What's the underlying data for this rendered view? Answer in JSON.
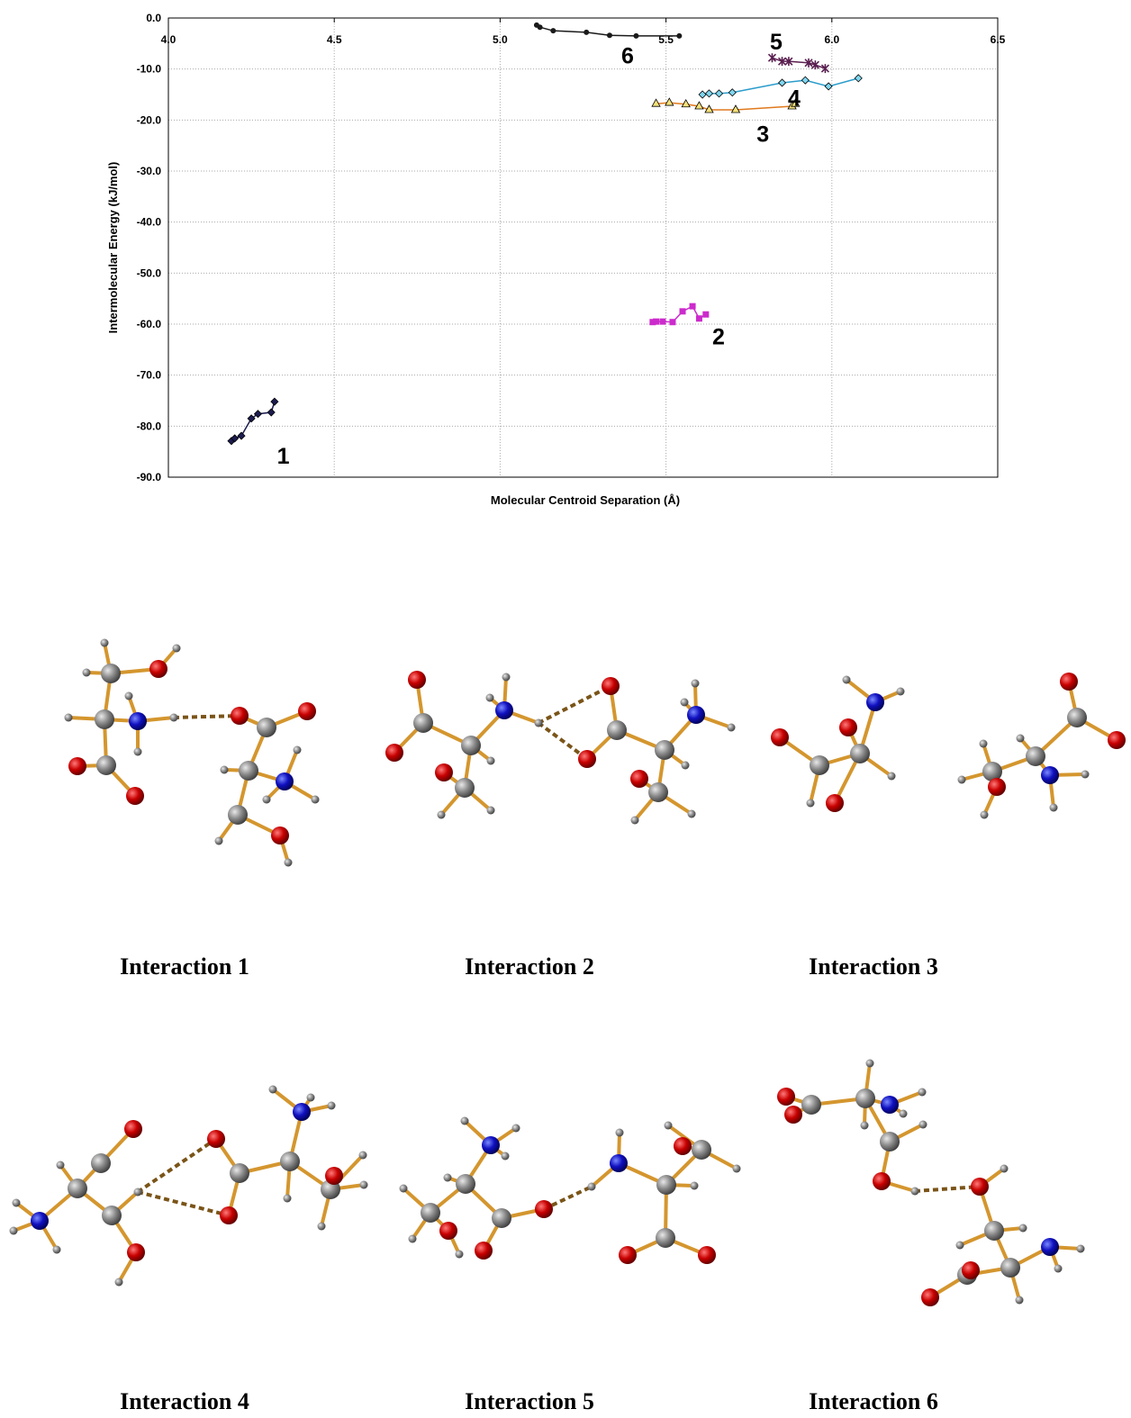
{
  "chart_data": {
    "type": "scatter",
    "x_label": "Molecular Centroid Separation (Å)",
    "y_label": "Intermolecular Energy (kJ/mol)",
    "xlim": [
      4.0,
      6.5
    ],
    "xticks": [
      {
        "value": 4,
        "label": "4.0"
      },
      4.5,
      {
        "value": 5,
        "label": "5.0"
      },
      5.5,
      {
        "value": 6,
        "label": "6.0"
      },
      6.5
    ],
    "ylim": [
      -90,
      0
    ],
    "yticks": [
      {
        "value": 0,
        "label": "0.0"
      },
      {
        "value": -10,
        "label": "-10.0"
      },
      {
        "value": -20,
        "label": "-20.0"
      },
      {
        "value": -30,
        "label": "-30.0"
      },
      {
        "value": -40,
        "label": "-40.0"
      },
      {
        "value": -50,
        "label": "-50.0"
      },
      {
        "value": -60,
        "label": "-60.0"
      },
      {
        "value": -70,
        "label": "-70.0"
      },
      {
        "value": -80,
        "label": "-80.0"
      },
      {
        "value": -90,
        "label": "-90.0"
      }
    ],
    "grid": true,
    "series": [
      {
        "name": "1",
        "color": "#1c1c50",
        "marker": "diamond",
        "x": [
          4.19,
          4.2,
          4.22,
          4.25,
          4.27,
          4.31,
          4.32
        ],
        "values": [
          -82.9,
          -82.4,
          -81.9,
          -78.5,
          -77.6,
          -77.3,
          -75.2
        ]
      },
      {
        "name": "2",
        "color": "#cc2bcc",
        "marker": "square",
        "x": [
          5.46,
          5.47,
          5.49,
          5.52,
          5.55,
          5.58,
          5.6,
          5.62
        ],
        "values": [
          -59.6,
          -59.5,
          -59.5,
          -59.6,
          -57.5,
          -56.5,
          -58.9,
          -58.1
        ]
      },
      {
        "name": "3",
        "color": "#e07a1e",
        "marker": "triangle",
        "x": [
          5.47,
          5.51,
          5.56,
          5.6,
          5.63,
          5.71,
          5.88,
          5.89
        ],
        "values": [
          -16.8,
          -16.6,
          -16.9,
          -17.3,
          -18.0,
          -18.0,
          -17.3,
          -16.8
        ]
      },
      {
        "name": "4",
        "color": "#2a9ccb",
        "marker": "diamond",
        "x": [
          5.61,
          5.63,
          5.66,
          5.7,
          5.85,
          5.92,
          5.99,
          6.08
        ],
        "values": [
          -15.0,
          -14.8,
          -14.8,
          -14.6,
          -12.7,
          -12.2,
          -13.4,
          -11.8
        ]
      },
      {
        "name": "5",
        "color": "#5a1f50",
        "marker": "x",
        "x": [
          5.82,
          5.85,
          5.87,
          5.93,
          5.95,
          5.98
        ],
        "values": [
          -7.8,
          -8.5,
          -8.5,
          -8.8,
          -9.2,
          -9.9
        ]
      },
      {
        "name": "6",
        "color": "#1a1a1a",
        "marker": "circle",
        "x": [
          5.11,
          5.12,
          5.16,
          5.26,
          5.33,
          5.41,
          5.54
        ],
        "values": [
          -1.4,
          -1.8,
          -2.5,
          -2.8,
          -3.4,
          -3.5,
          -3.5
        ]
      }
    ]
  },
  "captions": [
    "Interaction 1",
    "Interaction 2",
    "Interaction 3",
    "Interaction 4",
    "Interaction 5",
    "Interaction 6"
  ]
}
